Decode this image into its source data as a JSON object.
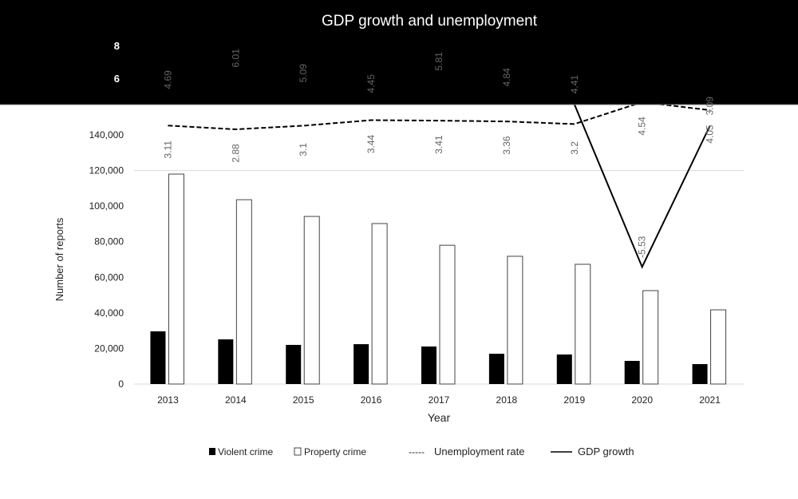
{
  "chart_data": {
    "type": "bar",
    "title": "GDP growth and unemployment",
    "xlabel": "Year",
    "ylabel": "Number of reports",
    "categories": [
      "2013",
      "2014",
      "2015",
      "2016",
      "2017",
      "2018",
      "2019",
      "2020",
      "2021"
    ],
    "ylim": [
      0,
      140000
    ],
    "y_ticks": [
      "0",
      "20,000",
      "40,000",
      "60,000",
      "80,000",
      "100,000",
      "120,000",
      "140,000"
    ],
    "y2_ticks_visible": [
      "6",
      "8"
    ],
    "y2_scale": {
      "zero_value": 0,
      "unit_step": 2
    },
    "series": [
      {
        "name": "Violent crime",
        "type": "bar",
        "axis": "primary",
        "color": "#000000",
        "values": [
          29600,
          25100,
          22000,
          22400,
          21100,
          17000,
          16600,
          13000,
          11200
        ]
      },
      {
        "name": "Property crime",
        "type": "bar",
        "axis": "primary",
        "color": "#ffffff",
        "values": [
          118000,
          103600,
          94200,
          90200,
          78000,
          71800,
          67300,
          52500,
          41700
        ]
      },
      {
        "name": "Unemployment rate",
        "legend_prefix": "-----",
        "type": "line",
        "style": "dashed",
        "axis": "secondary",
        "values": [
          3.11,
          2.88,
          3.1,
          3.44,
          3.41,
          3.36,
          3.2,
          4.54,
          4.05
        ],
        "labels": [
          "3.11",
          "2.88",
          "3.1",
          "3.44",
          "3.41",
          "3.36",
          "3.2",
          "4.54",
          "4.05"
        ]
      },
      {
        "name": "GDP growth",
        "legend_prefix": "——",
        "type": "line",
        "style": "solid",
        "axis": "secondary",
        "values": [
          4.69,
          6.01,
          5.09,
          4.45,
          5.81,
          4.84,
          4.41,
          -5.53,
          3.09
        ],
        "labels": [
          "4.69",
          "6.01",
          "5.09",
          "4.45",
          "5.81",
          "4.84",
          "4.41",
          "-5.53",
          "3.09"
        ]
      }
    ],
    "legend_position": "bottom",
    "grid": false
  }
}
